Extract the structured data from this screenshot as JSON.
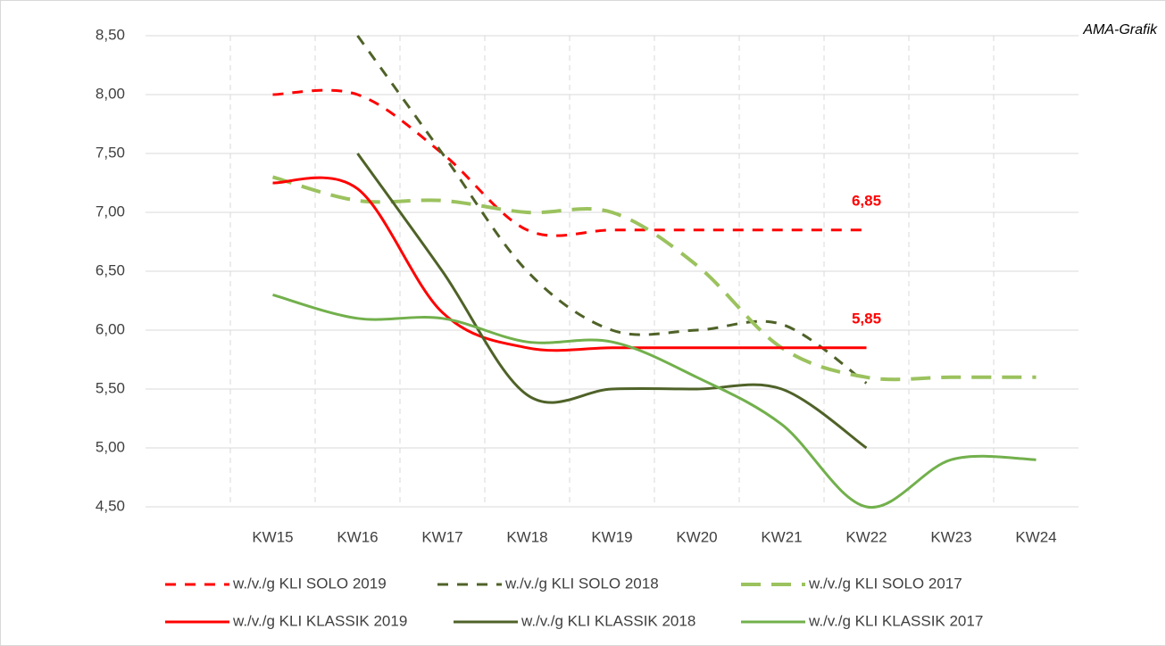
{
  "chart_data": {
    "type": "line",
    "annotation": "AMA-Grafik",
    "categories": [
      null,
      "KW15",
      "KW16",
      "KW17",
      "KW18",
      "KW19",
      "KW20",
      "KW21",
      "KW22",
      "KW23",
      "KW24"
    ],
    "ylim": [
      4.5,
      8.5
    ],
    "yticks": [
      {
        "value": 4.5,
        "label": "4,50"
      },
      {
        "value": 5,
        "label": "5,00"
      },
      {
        "value": 5.5,
        "label": "5,50"
      },
      {
        "value": 6,
        "label": "6,00"
      },
      {
        "value": 6.5,
        "label": "6,50"
      },
      {
        "value": 7,
        "label": "7,00"
      },
      {
        "value": 7.5,
        "label": "7,50"
      },
      {
        "value": 8,
        "label": "8,00"
      },
      {
        "value": 8.5,
        "label": "8,50"
      }
    ],
    "grid": true,
    "legend": "bottom",
    "series": [
      {
        "name": "w./v./g KLI SOLO 2019",
        "color": "#ff0000",
        "style": "dashed",
        "values": [
          null,
          8.0,
          8.0,
          7.5,
          6.85,
          6.85,
          6.85,
          6.85,
          6.85,
          null,
          null
        ],
        "value_labels": [
          null,
          null,
          null,
          null,
          null,
          null,
          null,
          null,
          "6,85",
          null,
          null
        ]
      },
      {
        "name": "w./v./g KLI SOLO 2018",
        "color": "#4f6228",
        "style": "dashed",
        "values": [
          null,
          null,
          8.5,
          7.5,
          6.5,
          6.0,
          6.0,
          6.05,
          5.55,
          null,
          null
        ]
      },
      {
        "name": "w./v./g KLI SOLO 2017",
        "color": "#9bc25e",
        "style": "dashed",
        "values": [
          null,
          7.3,
          7.1,
          7.1,
          7.0,
          7.0,
          6.55,
          5.85,
          5.6,
          5.6,
          5.6
        ]
      },
      {
        "name": "w./v./g KLI KLASSIK 2019",
        "color": "#ff0000",
        "style": "solid",
        "values": [
          null,
          7.25,
          7.2,
          6.15,
          5.85,
          5.85,
          5.85,
          5.85,
          5.85,
          null,
          null
        ],
        "value_labels": [
          null,
          null,
          null,
          null,
          null,
          null,
          null,
          null,
          "5,85",
          null,
          null
        ]
      },
      {
        "name": "w./v./g KLI KLASSIK 2018",
        "color": "#4f6228",
        "style": "solid",
        "values": [
          null,
          null,
          7.5,
          6.5,
          5.45,
          5.5,
          5.5,
          5.5,
          5.0,
          null,
          null
        ]
      },
      {
        "name": "w./v./g KLI KLASSIK 2017",
        "color": "#72b04c",
        "style": "solid",
        "values": [
          null,
          6.3,
          6.1,
          6.1,
          5.9,
          5.9,
          5.6,
          5.2,
          4.5,
          4.9,
          4.9
        ]
      }
    ]
  }
}
